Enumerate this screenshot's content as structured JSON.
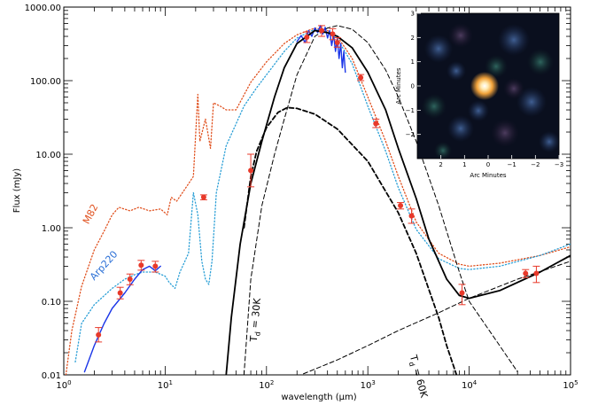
{
  "chart_data": {
    "type": "line",
    "title": "",
    "xlabel": "wavelength (μm)",
    "ylabel": "Flux (mJy)",
    "xscale": "log",
    "yscale": "log",
    "xlim": [
      1,
      100000
    ],
    "ylim": [
      0.01,
      1000
    ],
    "x_tick_labels": [
      "10^0",
      "10^1",
      "10^2",
      "10^3",
      "10^4",
      "10^5"
    ],
    "y_tick_labels": [
      "0.01",
      "0.10",
      "1.00",
      "10.00",
      "100.00",
      "1000.00"
    ],
    "annotations": [
      {
        "text": "M82",
        "x": 1.75,
        "y": 1.1,
        "color": "#e0501e"
      },
      {
        "text": "Arp220",
        "x": 2.0,
        "y": 0.19,
        "color": "#2a6fd6"
      },
      {
        "text": "T_d = 30K",
        "x": 80,
        "y": 0.028,
        "color": "#000000"
      },
      {
        "text": "T_d = 60K",
        "x": 2600,
        "y": 0.018,
        "color": "#000000"
      }
    ],
    "series": [
      {
        "name": "",
        "style": "points-with-errorbars",
        "color": "#e8392a",
        "points": [
          {
            "x": 2.2,
            "y": 0.035,
            "ylo": 0.028,
            "yhi": 0.044
          },
          {
            "x": 3.6,
            "y": 0.13,
            "ylo": 0.108,
            "yhi": 0.155
          },
          {
            "x": 4.5,
            "y": 0.2,
            "ylo": 0.168,
            "yhi": 0.235
          },
          {
            "x": 5.8,
            "y": 0.31,
            "ylo": 0.265,
            "yhi": 0.36
          },
          {
            "x": 8.0,
            "y": 0.3,
            "ylo": 0.25,
            "yhi": 0.35
          },
          {
            "x": 24,
            "y": 2.6,
            "ylo": 2.4,
            "yhi": 2.8
          },
          {
            "x": 70,
            "y": 6.0,
            "ylo": 3.6,
            "yhi": 10.0
          },
          {
            "x": 250,
            "y": 390,
            "ylo": 330,
            "yhi": 460
          },
          {
            "x": 350,
            "y": 480,
            "ylo": 400,
            "yhi": 560
          },
          {
            "x": 450,
            "y": 430,
            "ylo": 360,
            "yhi": 510
          },
          {
            "x": 500,
            "y": 330,
            "ylo": 285,
            "yhi": 385
          },
          {
            "x": 850,
            "y": 110,
            "ylo": 100,
            "yhi": 121
          },
          {
            "x": 1200,
            "y": 26,
            "ylo": 23,
            "yhi": 30
          },
          {
            "x": 2100,
            "y": 2.0,
            "ylo": 1.8,
            "yhi": 2.2
          },
          {
            "x": 2700,
            "y": 1.45,
            "ylo": 1.15,
            "yhi": 1.8
          },
          {
            "x": 8500,
            "y": 0.13,
            "ylo": 0.09,
            "yhi": 0.17
          },
          {
            "x": 36000,
            "y": 0.24,
            "ylo": 0.21,
            "yhi": 0.27
          },
          {
            "x": 46000,
            "y": 0.24,
            "ylo": 0.18,
            "yhi": 0.3
          }
        ]
      },
      {
        "name": "M82",
        "style": "dotted",
        "color": "#e0501e",
        "points": [
          [
            1.05,
            0.01
          ],
          [
            1.2,
            0.04
          ],
          [
            1.5,
            0.16
          ],
          [
            2.0,
            0.5
          ],
          [
            2.5,
            0.9
          ],
          [
            3.0,
            1.5
          ],
          [
            3.5,
            1.9
          ],
          [
            4.5,
            1.7
          ],
          [
            5.5,
            1.9
          ],
          [
            7.0,
            1.7
          ],
          [
            9.0,
            1.8
          ],
          [
            10.5,
            1.5
          ],
          [
            11.5,
            2.6
          ],
          [
            13.0,
            2.3
          ],
          [
            16.0,
            3.5
          ],
          [
            19.0,
            5.0
          ],
          [
            21.0,
            65
          ],
          [
            22.0,
            15
          ],
          [
            25.0,
            30
          ],
          [
            28.0,
            12
          ],
          [
            30.0,
            50
          ],
          [
            35.0,
            45
          ],
          [
            40.0,
            40
          ],
          [
            50.0,
            40
          ],
          [
            70.0,
            95
          ],
          [
            100,
            180
          ],
          [
            150,
            320
          ],
          [
            200,
            420
          ],
          [
            300,
            520
          ],
          [
            400,
            480
          ],
          [
            500,
            400
          ],
          [
            700,
            200
          ],
          [
            1000,
            60
          ],
          [
            1500,
            15
          ],
          [
            2000,
            5
          ],
          [
            3000,
            1.2
          ],
          [
            5000,
            0.45
          ],
          [
            8000,
            0.32
          ],
          [
            10000,
            0.3
          ],
          [
            20000,
            0.33
          ],
          [
            50000,
            0.42
          ],
          [
            100000,
            0.55
          ]
        ]
      },
      {
        "name": "Arp220",
        "style": "dotted",
        "color": "#2a9fd6",
        "points": [
          [
            1.3,
            0.015
          ],
          [
            1.5,
            0.05
          ],
          [
            2.0,
            0.09
          ],
          [
            3.0,
            0.15
          ],
          [
            4.0,
            0.2
          ],
          [
            5.0,
            0.23
          ],
          [
            6.0,
            0.25
          ],
          [
            8.0,
            0.25
          ],
          [
            10.0,
            0.22
          ],
          [
            11.0,
            0.18
          ],
          [
            12.5,
            0.15
          ],
          [
            14.0,
            0.25
          ],
          [
            17.0,
            0.45
          ],
          [
            19.0,
            3.0
          ],
          [
            21.0,
            1.5
          ],
          [
            23.0,
            0.35
          ],
          [
            25.0,
            0.2
          ],
          [
            27.0,
            0.17
          ],
          [
            29.0,
            0.35
          ],
          [
            32.0,
            3.0
          ],
          [
            40.0,
            13
          ],
          [
            60.0,
            45
          ],
          [
            80.0,
            80
          ],
          [
            100,
            120
          ],
          [
            150,
            250
          ],
          [
            200,
            380
          ],
          [
            300,
            500
          ],
          [
            400,
            450
          ],
          [
            500,
            370
          ],
          [
            700,
            170
          ],
          [
            1000,
            45
          ],
          [
            1500,
            11
          ],
          [
            2000,
            3.5
          ],
          [
            3000,
            0.95
          ],
          [
            5000,
            0.38
          ],
          [
            8000,
            0.28
          ],
          [
            10000,
            0.27
          ],
          [
            20000,
            0.3
          ],
          [
            50000,
            0.42
          ],
          [
            100000,
            0.6
          ]
        ]
      },
      {
        "name": "",
        "style": "solid",
        "color": "#1a35e8",
        "points": [
          [
            1.6,
            0.011
          ],
          [
            2.0,
            0.025
          ],
          [
            2.5,
            0.05
          ],
          [
            3.0,
            0.08
          ],
          [
            4.0,
            0.13
          ],
          [
            5.0,
            0.2
          ],
          [
            6.0,
            0.27
          ],
          [
            7.0,
            0.3
          ],
          [
            8.0,
            0.26
          ],
          [
            9.0,
            0.3
          ]
        ]
      },
      {
        "name": "",
        "style": "solid",
        "color": "#1a35e8",
        "points": [
          [
            200,
            340
          ],
          [
            220,
            410
          ],
          [
            240,
            330
          ],
          [
            260,
            480
          ],
          [
            280,
            400
          ],
          [
            300,
            520
          ],
          [
            320,
            450
          ],
          [
            340,
            560
          ],
          [
            360,
            430
          ],
          [
            380,
            530
          ],
          [
            400,
            380
          ],
          [
            420,
            480
          ],
          [
            440,
            300
          ],
          [
            460,
            420
          ],
          [
            480,
            250
          ],
          [
            500,
            380
          ],
          [
            520,
            200
          ],
          [
            540,
            320
          ],
          [
            560,
            150
          ],
          [
            580,
            250
          ],
          [
            600,
            130
          ]
        ]
      },
      {
        "name": "",
        "style": "solid-thick",
        "color": "#000000",
        "points": [
          [
            40,
            0.01
          ],
          [
            45,
            0.06
          ],
          [
            55,
            0.6
          ],
          [
            70,
            4
          ],
          [
            90,
            15
          ],
          [
            120,
            60
          ],
          [
            150,
            150
          ],
          [
            200,
            320
          ],
          [
            300,
            480
          ],
          [
            400,
            450
          ],
          [
            500,
            400
          ],
          [
            700,
            280
          ],
          [
            1000,
            130
          ],
          [
            1500,
            40
          ],
          [
            2000,
            12
          ],
          [
            3000,
            2.5
          ],
          [
            4000,
            0.7
          ],
          [
            6000,
            0.2
          ],
          [
            8000,
            0.12
          ],
          [
            10000,
            0.11
          ],
          [
            20000,
            0.14
          ],
          [
            50000,
            0.25
          ],
          [
            100000,
            0.42
          ]
        ]
      },
      {
        "name": "",
        "style": "dashed-thick",
        "color": "#000000",
        "points": [
          [
            60,
            1.0
          ],
          [
            70,
            5
          ],
          [
            80,
            11
          ],
          [
            100,
            23
          ],
          [
            130,
            37
          ],
          [
            160,
            43
          ],
          [
            200,
            42
          ],
          [
            300,
            35
          ],
          [
            500,
            22
          ],
          [
            1000,
            8
          ],
          [
            2000,
            1.6
          ],
          [
            3000,
            0.45
          ],
          [
            5000,
            0.06
          ],
          [
            6000,
            0.025
          ],
          [
            7500,
            0.01
          ]
        ]
      },
      {
        "name": "",
        "style": "dashed",
        "color": "#000000",
        "points": [
          [
            60,
            0.01
          ],
          [
            70,
            0.2
          ],
          [
            90,
            2
          ],
          [
            120,
            10
          ],
          [
            150,
            30
          ],
          [
            200,
            120
          ],
          [
            300,
            400
          ],
          [
            400,
            520
          ],
          [
            500,
            560
          ],
          [
            700,
            500
          ],
          [
            1000,
            330
          ],
          [
            1500,
            140
          ],
          [
            2000,
            60
          ],
          [
            3000,
            15
          ],
          [
            5000,
            2
          ],
          [
            8000,
            0.25
          ],
          [
            10000,
            0.1
          ],
          [
            20000,
            0.025
          ],
          [
            30000,
            0.011
          ]
        ]
      },
      {
        "name": "",
        "style": "dashed",
        "color": "#000000",
        "points": [
          [
            200,
            0.0095
          ],
          [
            500,
            0.016
          ],
          [
            1000,
            0.025
          ],
          [
            2000,
            0.04
          ],
          [
            5000,
            0.07
          ],
          [
            10000,
            0.11
          ],
          [
            30000,
            0.2
          ],
          [
            100000,
            0.35
          ]
        ]
      }
    ],
    "inset": {
      "type": "image",
      "xlabel": "Arc Minutes",
      "ylabel": "Arc Minutes",
      "x_tick_labels": [
        "2",
        "1",
        "0",
        "−1",
        "−2",
        "−3"
      ],
      "y_tick_labels": [
        "3",
        "2",
        "1",
        "0",
        "−1",
        "−2"
      ],
      "xlim": [
        3,
        -3
      ],
      "ylim": [
        -3,
        3
      ]
    }
  }
}
